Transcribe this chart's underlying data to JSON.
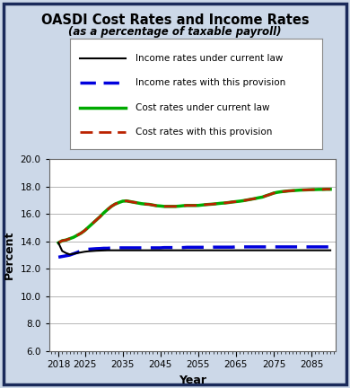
{
  "title": "OASDI Cost Rates and Income Rates",
  "subtitle": "(as a percentage of taxable payroll)",
  "xlabel": "Year",
  "ylabel": "Percent",
  "outer_bg": "#a0b4cc",
  "inner_bg": "#ccd8e8",
  "plot_bg": "#ffffff",
  "border_color": "#1a2a5a",
  "ylim": [
    6.0,
    20.0
  ],
  "yticks": [
    6.0,
    8.0,
    10.0,
    12.0,
    14.0,
    16.0,
    18.0,
    20.0
  ],
  "xticks": [
    2018,
    2025,
    2035,
    2045,
    2055,
    2065,
    2075,
    2085
  ],
  "xlim": [
    2015.5,
    2091.5
  ],
  "years": [
    2018,
    2019,
    2020,
    2021,
    2022,
    2023,
    2024,
    2025,
    2026,
    2027,
    2028,
    2029,
    2030,
    2031,
    2032,
    2033,
    2034,
    2035,
    2036,
    2037,
    2038,
    2039,
    2040,
    2041,
    2042,
    2043,
    2044,
    2045,
    2046,
    2047,
    2048,
    2049,
    2050,
    2051,
    2052,
    2053,
    2054,
    2055,
    2056,
    2057,
    2058,
    2059,
    2060,
    2061,
    2062,
    2063,
    2064,
    2065,
    2066,
    2067,
    2068,
    2069,
    2070,
    2071,
    2072,
    2073,
    2074,
    2075,
    2076,
    2077,
    2078,
    2079,
    2080,
    2081,
    2082,
    2083,
    2084,
    2085,
    2086,
    2087,
    2088,
    2089,
    2090
  ],
  "income_current_law": [
    13.89,
    13.3,
    13.15,
    13.05,
    13.1,
    13.15,
    13.2,
    13.25,
    13.28,
    13.3,
    13.32,
    13.33,
    13.34,
    13.35,
    13.35,
    13.35,
    13.35,
    13.35,
    13.35,
    13.35,
    13.35,
    13.35,
    13.35,
    13.35,
    13.35,
    13.35,
    13.35,
    13.35,
    13.35,
    13.35,
    13.35,
    13.35,
    13.35,
    13.35,
    13.35,
    13.35,
    13.35,
    13.35,
    13.35,
    13.35,
    13.35,
    13.35,
    13.35,
    13.35,
    13.35,
    13.35,
    13.35,
    13.35,
    13.35,
    13.35,
    13.35,
    13.35,
    13.35,
    13.35,
    13.35,
    13.35,
    13.35,
    13.35,
    13.35,
    13.35,
    13.35,
    13.35,
    13.35,
    13.35,
    13.35,
    13.35,
    13.35,
    13.35,
    13.35,
    13.35,
    13.35,
    13.35,
    13.35
  ],
  "income_provision": [
    12.85,
    12.9,
    12.95,
    13.0,
    13.1,
    13.2,
    13.32,
    13.4,
    13.43,
    13.45,
    13.47,
    13.48,
    13.5,
    13.5,
    13.52,
    13.52,
    13.53,
    13.53,
    13.53,
    13.53,
    13.53,
    13.53,
    13.53,
    13.53,
    13.53,
    13.53,
    13.53,
    13.53,
    13.55,
    13.55,
    13.55,
    13.55,
    13.55,
    13.55,
    13.57,
    13.57,
    13.57,
    13.57,
    13.57,
    13.57,
    13.57,
    13.58,
    13.58,
    13.58,
    13.58,
    13.58,
    13.58,
    13.6,
    13.6,
    13.6,
    13.6,
    13.6,
    13.6,
    13.6,
    13.6,
    13.6,
    13.6,
    13.6,
    13.6,
    13.6,
    13.6,
    13.6,
    13.6,
    13.6,
    13.6,
    13.6,
    13.6,
    13.6,
    13.6,
    13.6,
    13.6,
    13.6,
    13.6
  ],
  "cost_current_law": [
    13.9,
    14.05,
    14.1,
    14.2,
    14.3,
    14.45,
    14.6,
    14.8,
    15.05,
    15.3,
    15.55,
    15.8,
    16.08,
    16.32,
    16.55,
    16.72,
    16.83,
    16.93,
    16.95,
    16.9,
    16.85,
    16.8,
    16.75,
    16.72,
    16.7,
    16.65,
    16.6,
    16.58,
    16.55,
    16.55,
    16.55,
    16.55,
    16.57,
    16.6,
    16.62,
    16.62,
    16.62,
    16.62,
    16.65,
    16.68,
    16.7,
    16.72,
    16.75,
    16.78,
    16.8,
    16.83,
    16.87,
    16.9,
    16.93,
    16.97,
    17.02,
    17.07,
    17.12,
    17.18,
    17.23,
    17.33,
    17.42,
    17.52,
    17.58,
    17.62,
    17.65,
    17.68,
    17.7,
    17.72,
    17.74,
    17.75,
    17.76,
    17.77,
    17.78,
    17.79,
    17.79,
    17.8,
    17.8
  ],
  "cost_provision": [
    13.9,
    14.05,
    14.1,
    14.2,
    14.3,
    14.45,
    14.6,
    14.8,
    15.05,
    15.3,
    15.55,
    15.8,
    16.08,
    16.32,
    16.55,
    16.72,
    16.83,
    16.93,
    16.95,
    16.9,
    16.85,
    16.8,
    16.75,
    16.72,
    16.7,
    16.65,
    16.6,
    16.58,
    16.55,
    16.55,
    16.55,
    16.55,
    16.57,
    16.6,
    16.62,
    16.62,
    16.62,
    16.62,
    16.65,
    16.68,
    16.7,
    16.72,
    16.75,
    16.78,
    16.8,
    16.83,
    16.87,
    16.9,
    16.93,
    16.97,
    17.02,
    17.07,
    17.12,
    17.18,
    17.23,
    17.33,
    17.42,
    17.52,
    17.58,
    17.62,
    17.65,
    17.68,
    17.7,
    17.72,
    17.74,
    17.75,
    17.76,
    17.77,
    17.78,
    17.79,
    17.79,
    17.8,
    17.8
  ],
  "legend_labels": [
    "Income rates under current law",
    "Income rates with this provision",
    "Cost rates under current law",
    "Cost rates with this provision"
  ],
  "legend_colors": [
    "#000000",
    "#0000dd",
    "#00aa00",
    "#bb2200"
  ],
  "legend_linestyles": [
    "solid",
    "dashed",
    "solid",
    "dashed"
  ],
  "legend_linewidths": [
    1.5,
    2.5,
    2.5,
    2.0
  ]
}
